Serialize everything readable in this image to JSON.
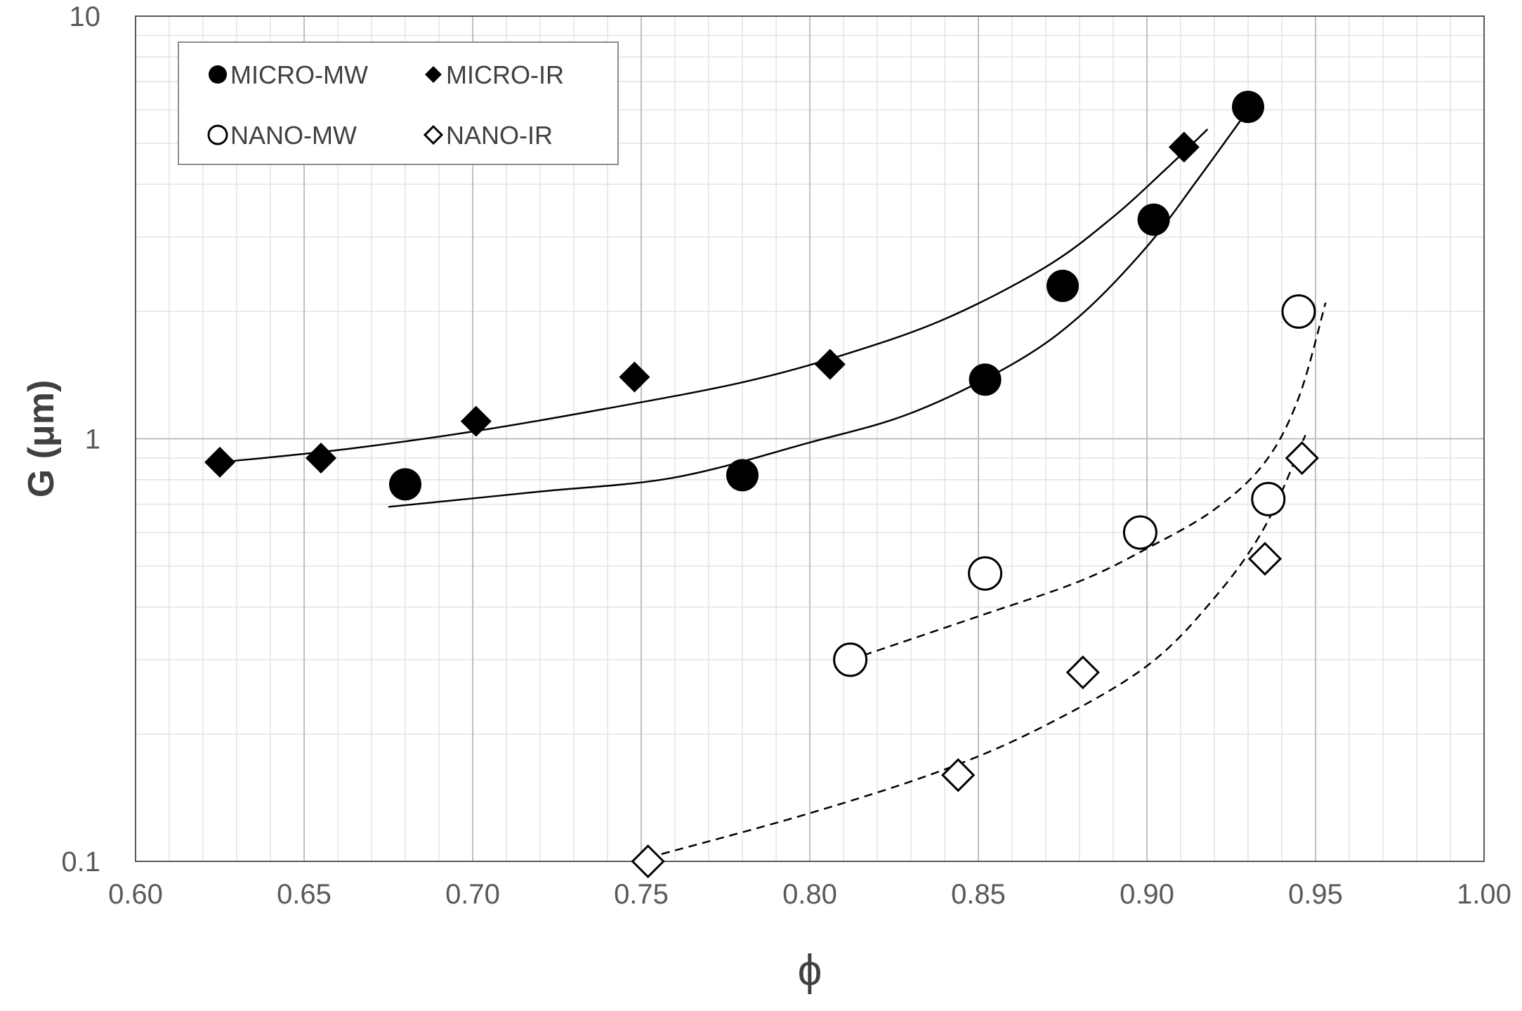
{
  "chart_data": {
    "type": "scatter",
    "title": "",
    "xlabel": "ϕ",
    "ylabel": "G (μm)",
    "xlim": [
      0.6,
      1.0
    ],
    "ylim": [
      0.1,
      10
    ],
    "yscale": "log",
    "grid": "major and minor",
    "legend_position": "top-left",
    "x_tick_labels": [
      "0.60",
      "0.65",
      "0.70",
      "0.75",
      "0.80",
      "0.85",
      "0.90",
      "0.95",
      "1.00"
    ],
    "y_tick_labels": [
      "0.1",
      "1",
      "10"
    ],
    "series": [
      {
        "name": "MICRO-MW",
        "marker": "circle-filled",
        "points": [
          [
            0.68,
            0.78
          ],
          [
            0.78,
            0.82
          ],
          [
            0.852,
            1.38
          ],
          [
            0.875,
            2.3
          ],
          [
            0.902,
            3.3
          ],
          [
            0.93,
            6.1
          ]
        ]
      },
      {
        "name": "MICRO-IR",
        "marker": "diamond-filled",
        "points": [
          [
            0.625,
            0.88
          ],
          [
            0.655,
            0.9
          ],
          [
            0.701,
            1.1
          ],
          [
            0.748,
            1.4
          ],
          [
            0.806,
            1.5
          ],
          [
            0.911,
            4.9
          ]
        ]
      },
      {
        "name": "NANO-MW",
        "marker": "circle-open",
        "points": [
          [
            0.812,
            0.3
          ],
          [
            0.852,
            0.48
          ],
          [
            0.898,
            0.6
          ],
          [
            0.936,
            0.72
          ],
          [
            0.945,
            2.0
          ]
        ]
      },
      {
        "name": "NANO-IR",
        "marker": "diamond-open",
        "points": [
          [
            0.752,
            0.1
          ],
          [
            0.844,
            0.16
          ],
          [
            0.881,
            0.28
          ],
          [
            0.935,
            0.52
          ],
          [
            0.946,
            0.9
          ]
        ]
      }
    ],
    "trend_lines": [
      {
        "series": "MICRO-MW",
        "style": "solid",
        "points": [
          [
            0.675,
            0.69
          ],
          [
            0.72,
            0.75
          ],
          [
            0.76,
            0.81
          ],
          [
            0.8,
            0.98
          ],
          [
            0.83,
            1.15
          ],
          [
            0.86,
            1.5
          ],
          [
            0.88,
            1.95
          ],
          [
            0.9,
            2.85
          ],
          [
            0.915,
            4.1
          ],
          [
            0.928,
            5.7
          ]
        ]
      },
      {
        "series": "MICRO-IR",
        "style": "solid",
        "points": [
          [
            0.625,
            0.88
          ],
          [
            0.66,
            0.94
          ],
          [
            0.7,
            1.04
          ],
          [
            0.74,
            1.18
          ],
          [
            0.78,
            1.36
          ],
          [
            0.81,
            1.58
          ],
          [
            0.84,
            1.92
          ],
          [
            0.87,
            2.55
          ],
          [
            0.89,
            3.35
          ],
          [
            0.905,
            4.3
          ],
          [
            0.918,
            5.4
          ]
        ]
      },
      {
        "series": "NANO-MW",
        "style": "dashed",
        "points": [
          [
            0.812,
            0.3
          ],
          [
            0.85,
            0.38
          ],
          [
            0.88,
            0.46
          ],
          [
            0.9,
            0.55
          ],
          [
            0.92,
            0.68
          ],
          [
            0.935,
            0.88
          ],
          [
            0.945,
            1.25
          ],
          [
            0.953,
            2.1
          ]
        ]
      },
      {
        "series": "NANO-IR",
        "style": "dashed",
        "points": [
          [
            0.752,
            0.102
          ],
          [
            0.8,
            0.13
          ],
          [
            0.84,
            0.165
          ],
          [
            0.87,
            0.21
          ],
          [
            0.9,
            0.29
          ],
          [
            0.92,
            0.42
          ],
          [
            0.935,
            0.62
          ],
          [
            0.947,
            1.02
          ]
        ]
      }
    ],
    "colors": {
      "marker": "#000000",
      "axis": "#595959",
      "major_grid": "#bfbfbf",
      "minor_grid": "#e3e3e3",
      "legend_border": "#8c8c8c"
    }
  }
}
